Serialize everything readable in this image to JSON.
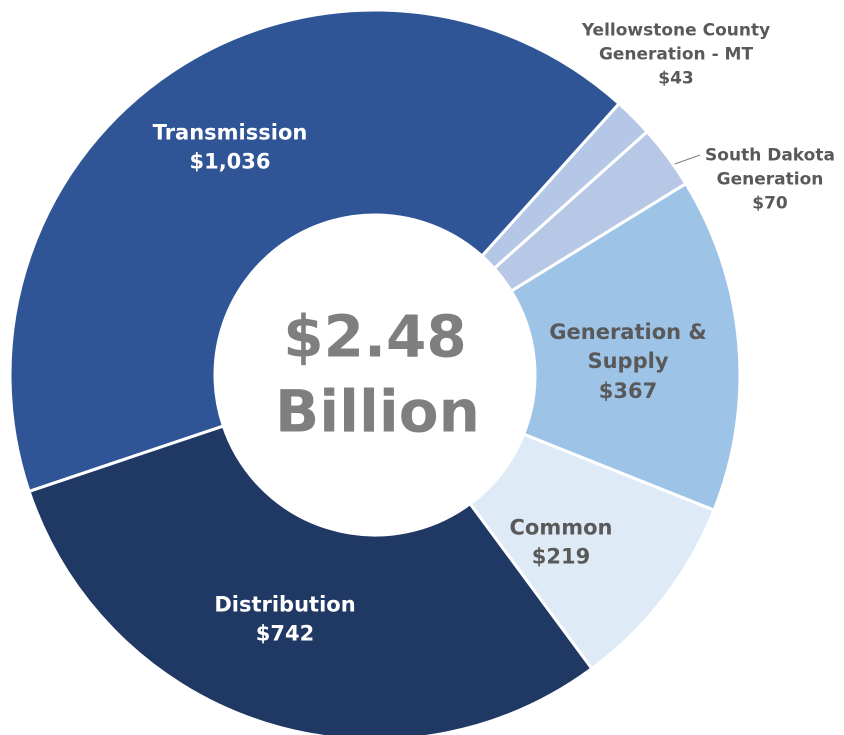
{
  "chart_data": {
    "type": "donut",
    "center_label": "$2.48 Billion",
    "categories": [
      "Transmission",
      "Yellowstone County Generation - MT",
      "South Dakota Generation",
      "Generation & Supply",
      "Common",
      "Distribution"
    ],
    "values": [
      1036,
      43,
      70,
      367,
      219,
      742
    ],
    "value_labels": [
      "$1,036",
      "$43",
      "$70",
      "$367",
      "$219",
      "$742"
    ],
    "colors": [
      "#2f5597",
      "#b4c7e7",
      "#b7c7e6",
      "#9dc3e6",
      "#deebf7",
      "#203864"
    ]
  }
}
